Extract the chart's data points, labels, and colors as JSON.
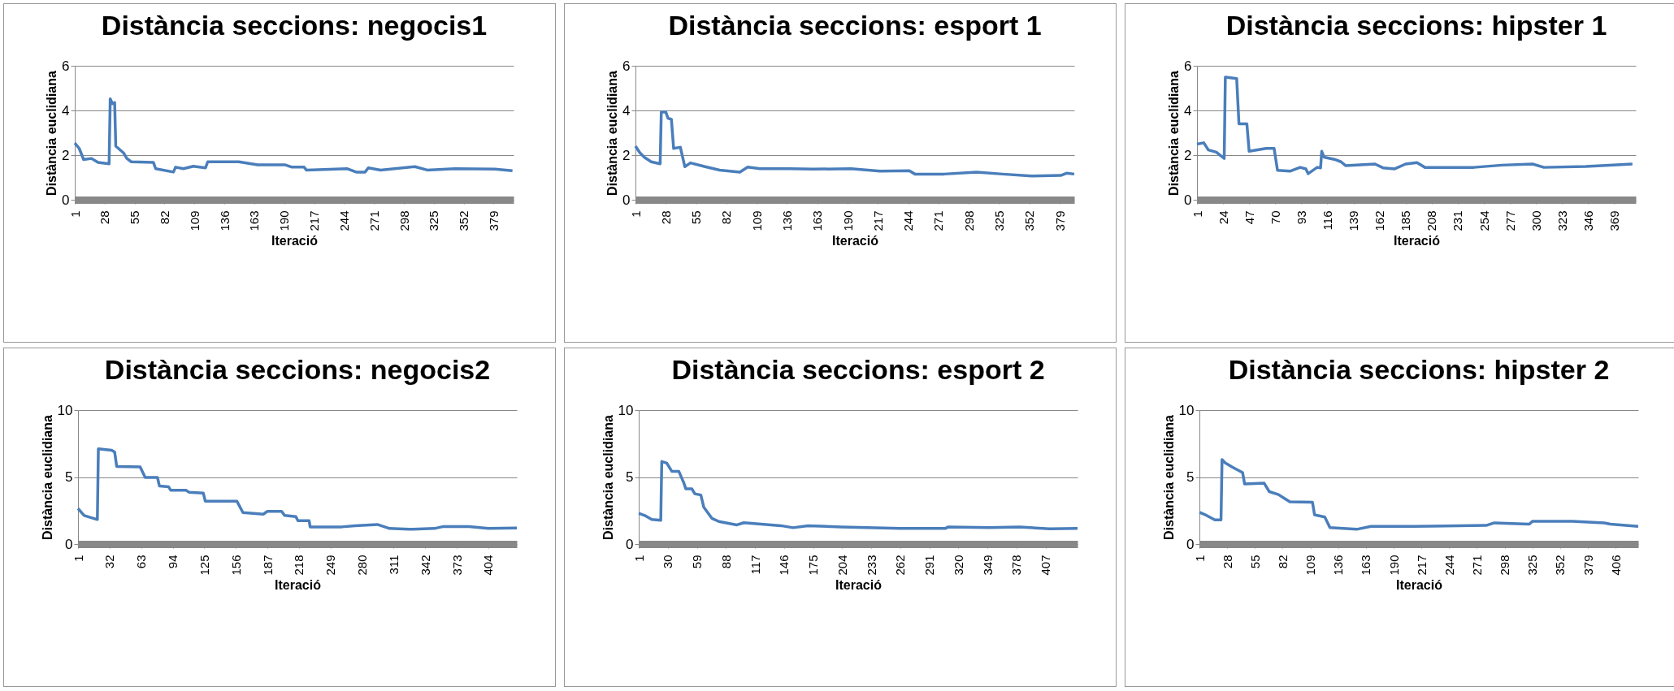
{
  "chart_data": [
    {
      "type": "line",
      "title": "Distància seccions: negocis1",
      "xlabel": "Iteració",
      "ylabel": "Distància euclidiana",
      "color": "#4a7ebb",
      "grid": "y",
      "xlim": [
        1,
        397
      ],
      "xticks": [
        1,
        28,
        55,
        82,
        109,
        136,
        163,
        190,
        217,
        244,
        271,
        298,
        325,
        352,
        379
      ],
      "ylim": [
        0,
        6
      ],
      "yticks": [
        0,
        2,
        4,
        6
      ],
      "x": [
        1,
        5,
        9,
        16,
        22,
        32,
        33,
        35,
        37,
        38,
        45,
        48,
        52,
        72,
        74,
        90,
        92,
        99,
        108,
        119,
        121,
        149,
        166,
        191,
        197,
        208,
        210,
        247,
        255,
        263,
        266,
        277,
        308,
        319,
        344,
        380,
        396
      ],
      "values": [
        2.54,
        2.3,
        1.8,
        1.85,
        1.67,
        1.61,
        4.52,
        4.3,
        4.35,
        2.4,
        2.1,
        1.85,
        1.7,
        1.67,
        1.39,
        1.24,
        1.46,
        1.39,
        1.5,
        1.43,
        1.7,
        1.7,
        1.56,
        1.56,
        1.46,
        1.46,
        1.33,
        1.39,
        1.24,
        1.24,
        1.43,
        1.33,
        1.48,
        1.33,
        1.39,
        1.37,
        1.3
      ]
    },
    {
      "type": "line",
      "title": "Distància seccions: esport 1",
      "xlabel": "Iteració",
      "ylabel": "Distància euclidiana",
      "color": "#4a7ebb",
      "grid": "y",
      "xlim": [
        1,
        392
      ],
      "xticks": [
        1,
        28,
        55,
        82,
        109,
        136,
        163,
        190,
        217,
        244,
        271,
        298,
        325,
        352,
        379
      ],
      "ylim": [
        0,
        6
      ],
      "yticks": [
        0,
        2,
        4,
        6
      ],
      "x": [
        1,
        5,
        9,
        15,
        23,
        24,
        28,
        30,
        33,
        35,
        41,
        45,
        50,
        63,
        76,
        94,
        101,
        112,
        138,
        159,
        193,
        219,
        245,
        250,
        276,
        305,
        328,
        354,
        380,
        385,
        392
      ],
      "values": [
        2.4,
        2.1,
        1.9,
        1.7,
        1.61,
        3.93,
        3.93,
        3.65,
        3.6,
        2.3,
        2.35,
        1.48,
        1.65,
        1.48,
        1.33,
        1.24,
        1.46,
        1.39,
        1.39,
        1.37,
        1.39,
        1.28,
        1.3,
        1.15,
        1.15,
        1.24,
        1.15,
        1.06,
        1.09,
        1.19,
        1.15
      ]
    },
    {
      "type": "line",
      "title": "Distància seccions: hipster 1",
      "xlabel": "Iteració",
      "ylabel": "Distància euclidiana",
      "color": "#4a7ebb",
      "grid": "y",
      "xlim": [
        1,
        388
      ],
      "xticks": [
        1,
        24,
        47,
        70,
        93,
        116,
        139,
        162,
        185,
        208,
        231,
        254,
        277,
        300,
        323,
        346,
        369
      ],
      "ylim": [
        0,
        6
      ],
      "yticks": [
        0,
        2,
        4,
        6
      ],
      "x": [
        1,
        7,
        11,
        18,
        25,
        26,
        36,
        38,
        45,
        47,
        62,
        69,
        72,
        83,
        92,
        97,
        99,
        107,
        110,
        111,
        113,
        122,
        128,
        132,
        158,
        165,
        175,
        185,
        195,
        202,
        245,
        270,
        297,
        307,
        344,
        385
      ],
      "values": [
        2.49,
        2.55,
        2.23,
        2.13,
        1.85,
        5.49,
        5.43,
        3.4,
        3.4,
        2.17,
        2.3,
        2.3,
        1.32,
        1.28,
        1.45,
        1.38,
        1.17,
        1.45,
        1.43,
        2.17,
        1.91,
        1.81,
        1.7,
        1.53,
        1.6,
        1.43,
        1.38,
        1.6,
        1.66,
        1.45,
        1.45,
        1.55,
        1.6,
        1.45,
        1.49,
        1.6
      ]
    },
    {
      "type": "line",
      "title": "Distància seccions: negocis2",
      "xlabel": "Iteració",
      "ylabel": "Distància euclidiana",
      "color": "#4a7ebb",
      "grid": "y",
      "xlim": [
        1,
        432
      ],
      "xticks": [
        1,
        32,
        63,
        94,
        125,
        156,
        187,
        218,
        249,
        280,
        311,
        342,
        373,
        404
      ],
      "ylim": [
        0,
        10
      ],
      "yticks": [
        0,
        5,
        10
      ],
      "x": [
        1,
        7,
        20,
        21,
        34,
        37,
        39,
        62,
        67,
        79,
        81,
        90,
        92,
        107,
        110,
        124,
        126,
        157,
        163,
        183,
        187,
        201,
        204,
        215,
        217,
        228,
        229,
        260,
        273,
        295,
        307,
        326,
        351,
        360,
        385,
        404,
        432
      ],
      "values": [
        2.65,
        2.13,
        1.83,
        7.1,
        7.0,
        6.86,
        5.79,
        5.76,
        4.97,
        4.97,
        4.33,
        4.27,
        4.02,
        4.02,
        3.87,
        3.81,
        3.2,
        3.2,
        2.35,
        2.23,
        2.44,
        2.44,
        2.13,
        2.04,
        1.74,
        1.74,
        1.28,
        1.28,
        1.37,
        1.46,
        1.16,
        1.1,
        1.16,
        1.31,
        1.31,
        1.16,
        1.19
      ]
    },
    {
      "type": "line",
      "title": "Distància seccions: esport 2",
      "xlabel": "Iteració",
      "ylabel": "Distància euclidiana",
      "color": "#4a7ebb",
      "grid": "y",
      "xlim": [
        1,
        439
      ],
      "xticks": [
        1,
        30,
        59,
        88,
        117,
        146,
        175,
        204,
        233,
        262,
        291,
        320,
        349,
        378,
        407
      ],
      "ylim": [
        0,
        10
      ],
      "yticks": [
        0,
        5,
        10
      ],
      "x": [
        1,
        7,
        14,
        23,
        24,
        29,
        34,
        41,
        46,
        48,
        54,
        57,
        63,
        66,
        74,
        81,
        99,
        106,
        143,
        155,
        170,
        203,
        262,
        307,
        310,
        351,
        381,
        411,
        439
      ],
      "values": [
        2.29,
        2.13,
        1.83,
        1.77,
        6.16,
        6.04,
        5.43,
        5.43,
        4.57,
        4.12,
        4.12,
        3.75,
        3.66,
        2.74,
        1.92,
        1.68,
        1.43,
        1.59,
        1.37,
        1.22,
        1.37,
        1.28,
        1.16,
        1.16,
        1.28,
        1.22,
        1.28,
        1.13,
        1.16
      ]
    },
    {
      "type": "line",
      "title": "Distància seccions: hipster 2",
      "xlabel": "Iteració",
      "ylabel": "Distància euclidiana",
      "color": "#4a7ebb",
      "grid": "y",
      "xlim": [
        1,
        428
      ],
      "xticks": [
        1,
        28,
        55,
        82,
        109,
        136,
        163,
        190,
        217,
        244,
        271,
        298,
        325,
        352,
        379,
        406
      ],
      "ylim": [
        0,
        10
      ],
      "yticks": [
        0,
        5,
        10
      ],
      "x": [
        1,
        6,
        16,
        22,
        23,
        26,
        33,
        43,
        45,
        64,
        69,
        78,
        83,
        89,
        111,
        113,
        123,
        128,
        154,
        168,
        210,
        280,
        288,
        322,
        325,
        364,
        395,
        401,
        428
      ],
      "values": [
        2.37,
        2.21,
        1.8,
        1.8,
        6.31,
        6.06,
        5.74,
        5.33,
        4.48,
        4.54,
        3.91,
        3.69,
        3.44,
        3.15,
        3.12,
        2.18,
        2.02,
        1.23,
        1.1,
        1.32,
        1.32,
        1.39,
        1.58,
        1.48,
        1.7,
        1.7,
        1.58,
        1.48,
        1.32
      ]
    }
  ]
}
